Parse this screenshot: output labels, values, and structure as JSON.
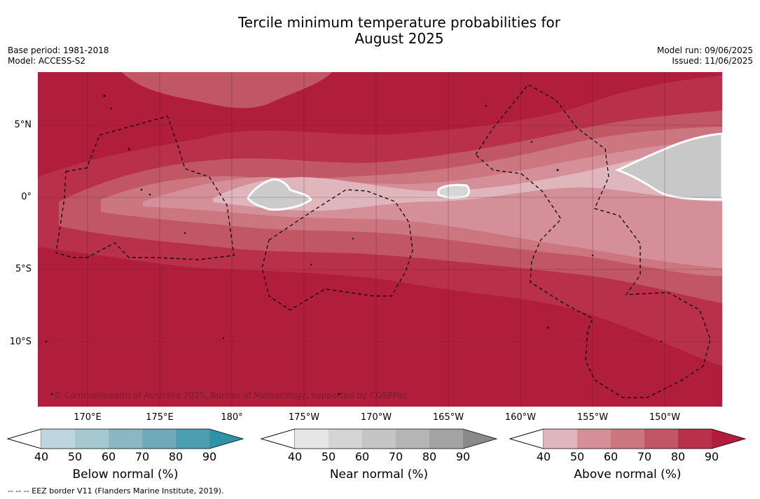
{
  "title": {
    "line1": "Tercile minimum temperature probabilities for",
    "line2": "August 2025"
  },
  "meta": {
    "base_period": "Base period: 1981-2018",
    "model": "Model: ACCESS-S2",
    "model_run": "Model run: 09/06/2025",
    "issued": "Issued: 11/06/2025"
  },
  "axes": {
    "lat_labels": [
      "5°N",
      "0°",
      "5°S",
      "10°S"
    ],
    "lon_labels": [
      "170°E",
      "175°E",
      "180°",
      "175°W",
      "170°W",
      "165°W",
      "160°W",
      "155°W",
      "150°W"
    ]
  },
  "copyright": "© Commonwealth of Australia 2025, Bureau of Meteorology, supported by COSPPac",
  "colorbars": [
    {
      "title": "Below normal (%)",
      "ticks": [
        "40",
        "50",
        "60",
        "70",
        "80",
        "90"
      ],
      "colors": [
        "#bdd6dd",
        "#a6c9d0",
        "#8ab7c2",
        "#6eaab8",
        "#4d9eae",
        "#2e93a6"
      ]
    },
    {
      "title": "Near normal (%)",
      "ticks": [
        "40",
        "50",
        "60",
        "70",
        "80",
        "90"
      ],
      "colors": [
        "#e6e6e6",
        "#d4d4d4",
        "#c5c5c5",
        "#b5b5b5",
        "#a3a3a3",
        "#8a8a8a"
      ]
    },
    {
      "title": "Above normal (%)",
      "ticks": [
        "40",
        "50",
        "60",
        "70",
        "80",
        "90"
      ],
      "colors": [
        "#e0b6bd",
        "#d58f98",
        "#cc7680",
        "#c15665",
        "#b83049",
        "#b01e3c"
      ]
    }
  ],
  "footnote": "--  --  -- EEZ border V11 (Flanders Marine Institute, 2019)."
}
